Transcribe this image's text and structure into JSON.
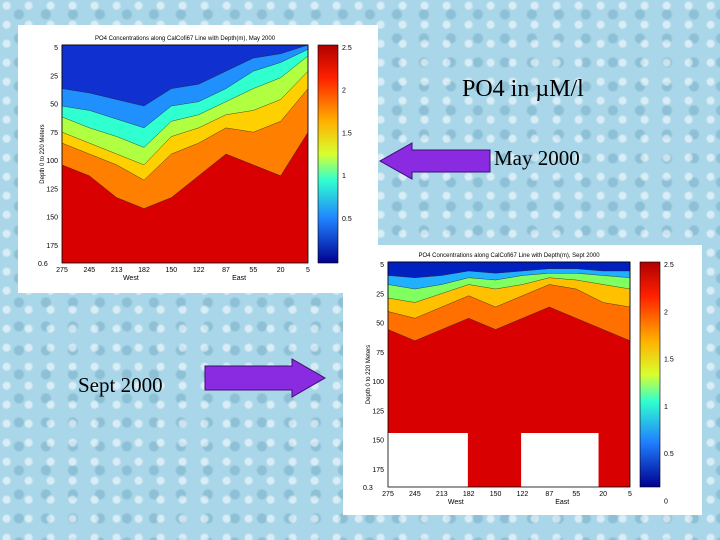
{
  "slide": {
    "title": "PO4 in µM/l",
    "labels": [
      "May 2000",
      "Sept 2000"
    ]
  },
  "panels": [
    {
      "title": "PO4 Concentrations along CalCofi67 Line with Depth(m), May 2000",
      "y_label": "Depth 0 to 220 Meters",
      "y_ticks": [
        "5",
        "25",
        "50",
        "75",
        "100",
        "125",
        "150",
        "175"
      ],
      "x_ticks": [
        "275",
        "245",
        "213",
        "182",
        "150",
        "122",
        "87",
        "55",
        "20",
        "5"
      ],
      "x_labels": [
        "West",
        "East"
      ],
      "colorbar_ticks": [
        "2.5",
        "2",
        "1.5",
        "1",
        "0.5"
      ],
      "corner": "0.6"
    },
    {
      "title": "PO4 Concentrations along CalCofi67 Line with Depth(m), Sept 2000",
      "y_label": "Depth 0 to 220 Meters",
      "y_ticks": [
        "5",
        "25",
        "50",
        "75",
        "100",
        "125",
        "150",
        "175"
      ],
      "x_ticks": [
        "275",
        "245",
        "213",
        "182",
        "150",
        "122",
        "87",
        "55",
        "20",
        "5"
      ],
      "x_labels": [
        "West",
        "East"
      ],
      "colorbar_ticks": [
        "2.5",
        "2",
        "1.5",
        "1",
        "0.5",
        "0"
      ],
      "corner": "0.3"
    }
  ]
}
